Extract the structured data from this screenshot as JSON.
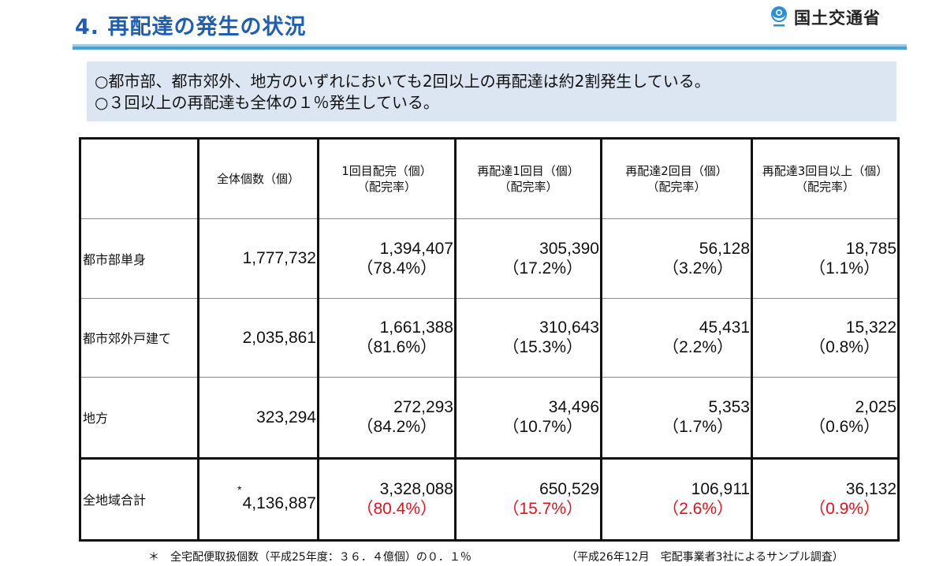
{
  "header": {
    "title": "4. 再配達の発生の状況",
    "logo_text": "国土交通省"
  },
  "summary": [
    "○都市部、都市郊外、地方のいずれにおいても2回以上の再配達は約2割発生している。",
    "○３回以上の再配達も全体の１％発生している。"
  ],
  "table": {
    "headers": [
      "",
      "全体個数（個）",
      [
        "1回目配完（個）",
        "（配完率）"
      ],
      [
        "再配達1回目（個）",
        "（配完率）"
      ],
      [
        "再配達2回目（個）",
        "（配完率）"
      ],
      [
        "再配達3回目以上（個）",
        "（配完率）"
      ]
    ],
    "rows": [
      {
        "label": "都市部単身",
        "total": "1,777,732",
        "cells": [
          {
            "value": "1,394,407",
            "rate": "（78.4%）"
          },
          {
            "value": "305,390",
            "rate": "（17.2%）"
          },
          {
            "value": "56,128",
            "rate": "（3.2%）"
          },
          {
            "value": "18,785",
            "rate": "（1.1%）"
          }
        ]
      },
      {
        "label": "都市郊外戸建て",
        "total": "2,035,861",
        "cells": [
          {
            "value": "1,661,388",
            "rate": "（81.6%）"
          },
          {
            "value": "310,643",
            "rate": "（15.3%）"
          },
          {
            "value": "45,431",
            "rate": "（2.2%）"
          },
          {
            "value": "15,322",
            "rate": "（0.8%）"
          }
        ]
      },
      {
        "label": "地方",
        "total": "323,294",
        "cells": [
          {
            "value": "272,293",
            "rate": "（84.2%）"
          },
          {
            "value": "34,496",
            "rate": "（10.7%）"
          },
          {
            "value": "5,353",
            "rate": "（1.7%）"
          },
          {
            "value": "2,025",
            "rate": "（0.6%）"
          }
        ]
      }
    ],
    "total_row": {
      "label": "全地域合計",
      "asterisk": "*",
      "total": "4,136,887",
      "cells": [
        {
          "value": "3,328,088",
          "rate": "（80.4%）"
        },
        {
          "value": "650,529",
          "rate": "（15.7%）"
        },
        {
          "value": "106,911",
          "rate": "（2.6%）"
        },
        {
          "value": "36,132",
          "rate": "（0.9%）"
        }
      ]
    }
  },
  "footer": {
    "note": "＊　全宅配便取扱個数（平成25年度：３６．４億個）の０．１％",
    "source": "（平成26年12月　宅配事業者3社によるサンプル調査）"
  },
  "colors": {
    "title": "#1f5fb0",
    "summary_bg": "#dce6f2",
    "total_rate": "#e0141e",
    "rule": "#4aa3d8"
  }
}
